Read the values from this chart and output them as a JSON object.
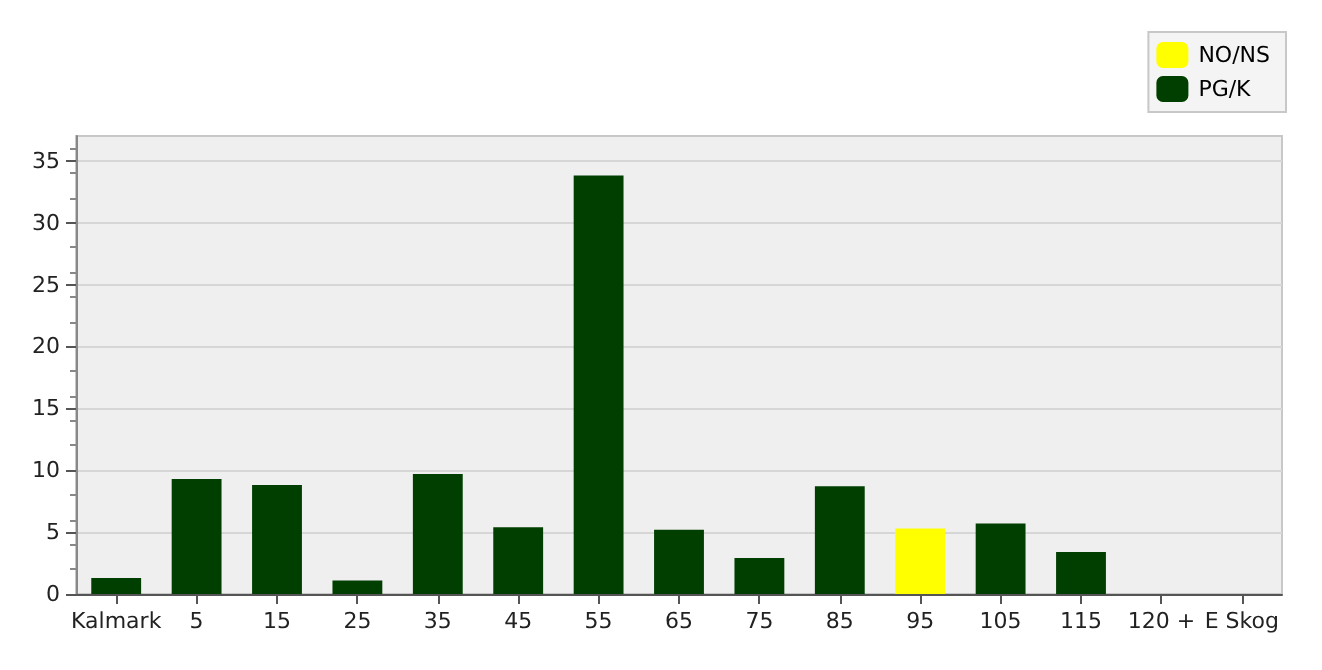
{
  "chart_data": {
    "type": "bar",
    "stacked": true,
    "categories": [
      "Kalmark",
      "5",
      "15",
      "25",
      "35",
      "45",
      "55",
      "65",
      "75",
      "85",
      "95",
      "105",
      "115",
      "120 +",
      "E Skog"
    ],
    "series": [
      {
        "name": "NO/NS",
        "color": "#ffff00",
        "values": [
          null,
          null,
          null,
          null,
          null,
          null,
          null,
          null,
          null,
          null,
          5.3,
          null,
          null,
          null,
          null
        ]
      },
      {
        "name": "PG/K",
        "color": "#003f00",
        "values": [
          1.3,
          9.3,
          8.8,
          1.1,
          9.7,
          5.4,
          33.8,
          5.2,
          2.9,
          8.7,
          null,
          5.7,
          3.4,
          0,
          0
        ]
      }
    ],
    "ylim": [
      0,
      37
    ],
    "yticks": [
      0,
      5,
      10,
      15,
      20,
      25,
      30,
      35
    ],
    "grid": "y",
    "legend": "top right"
  }
}
